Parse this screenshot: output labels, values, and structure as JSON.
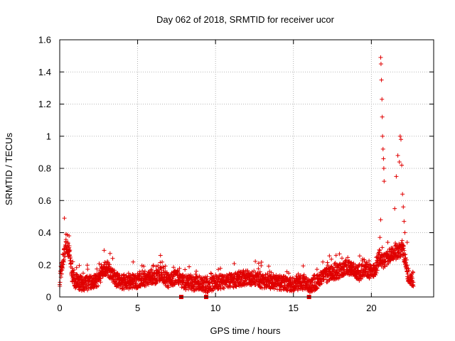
{
  "chart_data": {
    "type": "scatter",
    "title": "Day 062 of 2018, SRMTID for receiver ucor",
    "xlabel": "GPS time / hours",
    "ylabel": "SRMTID / TECUs",
    "xlim": [
      0,
      24
    ],
    "ylim": [
      0,
      1.6
    ],
    "grid": true,
    "marker": "+",
    "color": "#e00000",
    "xticks": [
      0,
      5,
      10,
      15,
      20
    ],
    "xtick_labels": [
      "0",
      "5",
      "10",
      "15",
      "20"
    ],
    "yticks": [
      0,
      0.2,
      0.4,
      0.6,
      0.8,
      1.0,
      1.2,
      1.4,
      1.6
    ],
    "ytick_labels": [
      "0",
      "0.2",
      "0.4",
      "0.6",
      "0.8",
      "1",
      "1.2",
      "1.4",
      "1.6"
    ],
    "series": [
      {
        "name": "SRMTID",
        "profile": [
          [
            0.0,
            0.1
          ],
          [
            0.1,
            0.17
          ],
          [
            0.25,
            0.25
          ],
          [
            0.4,
            0.33
          ],
          [
            0.5,
            0.3
          ],
          [
            0.65,
            0.28
          ],
          [
            0.8,
            0.14
          ],
          [
            1.0,
            0.1
          ],
          [
            1.5,
            0.08
          ],
          [
            2.0,
            0.09
          ],
          [
            2.5,
            0.11
          ],
          [
            2.9,
            0.18
          ],
          [
            3.2,
            0.16
          ],
          [
            3.6,
            0.11
          ],
          [
            4.0,
            0.09
          ],
          [
            5.0,
            0.1
          ],
          [
            6.0,
            0.12
          ],
          [
            6.5,
            0.14
          ],
          [
            7.0,
            0.1
          ],
          [
            7.5,
            0.13
          ],
          [
            8.0,
            0.09
          ],
          [
            9.0,
            0.08
          ],
          [
            9.5,
            0.07
          ],
          [
            10.0,
            0.09
          ],
          [
            11.0,
            0.1
          ],
          [
            12.0,
            0.12
          ],
          [
            12.5,
            0.11
          ],
          [
            13.0,
            0.1
          ],
          [
            14.0,
            0.09
          ],
          [
            15.0,
            0.08
          ],
          [
            15.5,
            0.09
          ],
          [
            16.0,
            0.07
          ],
          [
            16.5,
            0.09
          ],
          [
            17.0,
            0.13
          ],
          [
            17.5,
            0.15
          ],
          [
            18.0,
            0.16
          ],
          [
            18.4,
            0.19
          ],
          [
            18.8,
            0.17
          ],
          [
            19.2,
            0.14
          ],
          [
            19.6,
            0.18
          ],
          [
            20.0,
            0.15
          ],
          [
            20.3,
            0.18
          ],
          [
            20.5,
            0.25
          ],
          [
            20.8,
            0.22
          ],
          [
            21.2,
            0.26
          ],
          [
            21.6,
            0.28
          ],
          [
            22.0,
            0.3
          ],
          [
            22.2,
            0.22
          ],
          [
            22.4,
            0.12
          ],
          [
            22.7,
            0.11
          ]
        ],
        "notable_points": [
          [
            0.3,
            0.49
          ],
          [
            0.4,
            0.39
          ],
          [
            0.6,
            0.38
          ],
          [
            2.85,
            0.29
          ],
          [
            3.4,
            0.24
          ],
          [
            20.6,
            1.49
          ],
          [
            20.62,
            1.45
          ],
          [
            20.65,
            1.35
          ],
          [
            20.68,
            1.23
          ],
          [
            20.7,
            1.12
          ],
          [
            20.72,
            1.0
          ],
          [
            20.75,
            0.92
          ],
          [
            20.78,
            0.86
          ],
          [
            20.8,
            0.8
          ],
          [
            20.82,
            0.72
          ],
          [
            20.6,
            0.48
          ],
          [
            20.55,
            0.37
          ],
          [
            21.7,
            0.88
          ],
          [
            21.8,
            0.84
          ],
          [
            21.85,
            1.0
          ],
          [
            21.9,
            0.98
          ],
          [
            21.95,
            0.82
          ],
          [
            22.0,
            0.64
          ],
          [
            22.05,
            0.56
          ],
          [
            22.1,
            0.47
          ],
          [
            22.15,
            0.4
          ],
          [
            21.6,
            0.75
          ],
          [
            21.5,
            0.55
          ],
          [
            22.3,
            0.34
          ]
        ],
        "points_per_hour": 105,
        "data_end_hour": 22.7
      }
    ],
    "gap_markers_x": [
      7.8,
      9.4,
      16.0
    ]
  }
}
